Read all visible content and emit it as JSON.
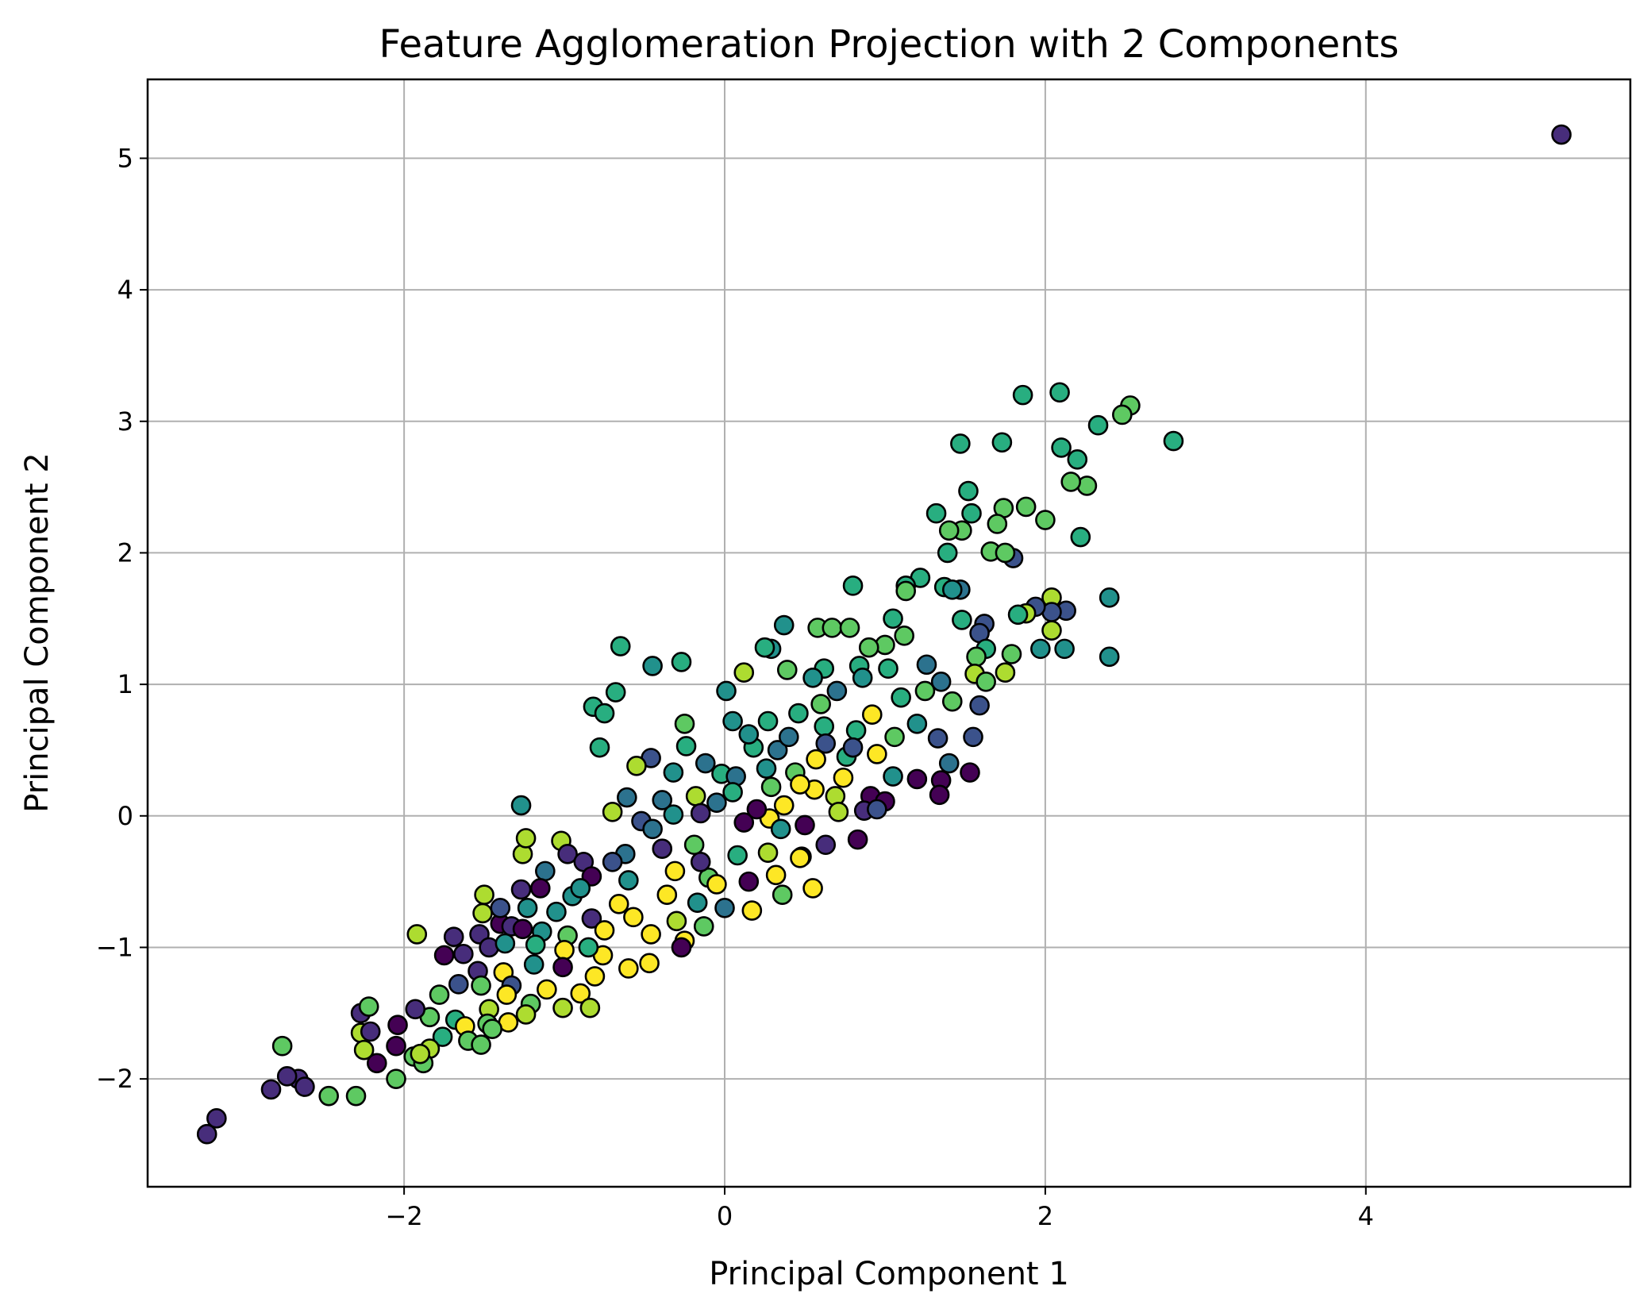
{
  "chart_data": {
    "type": "scatter",
    "title": "Feature Agglomeration Projection with 2 Components",
    "xlabel": "Principal Component 1",
    "ylabel": "Principal Component 2",
    "xlim": [
      -3.6,
      5.65
    ],
    "ylim": [
      -2.82,
      5.6
    ],
    "xticks": [
      -2,
      0,
      2,
      4
    ],
    "yticks": [
      -2,
      -1,
      0,
      1,
      2,
      3,
      4,
      5
    ],
    "xtick_labels": [
      "−2",
      "0",
      "2",
      "4"
    ],
    "ytick_labels": [
      "−2",
      "−1",
      "0",
      "1",
      "2",
      "3",
      "4",
      "5"
    ],
    "grid": true,
    "legend": "none",
    "colormap": "viridis",
    "marker_edge_color": "#000000",
    "palette": [
      "#440154",
      "#472d7b",
      "#3b528b",
      "#2c728e",
      "#21918c",
      "#28ae80",
      "#5ec962",
      "#addc30",
      "#fde725"
    ],
    "points": [
      [
        5.22,
        5.18,
        1
      ],
      [
        2.09,
        3.22,
        5
      ],
      [
        1.86,
        3.2,
        5
      ],
      [
        2.53,
        3.12,
        6
      ],
      [
        2.48,
        3.05,
        6
      ],
      [
        2.33,
        2.97,
        5
      ],
      [
        2.8,
        2.85,
        5
      ],
      [
        1.47,
        2.83,
        5
      ],
      [
        1.73,
        2.84,
        5
      ],
      [
        2.1,
        2.8,
        5
      ],
      [
        2.2,
        2.71,
        5
      ],
      [
        2.26,
        2.51,
        6
      ],
      [
        2.16,
        2.54,
        6
      ],
      [
        1.52,
        2.47,
        5
      ],
      [
        1.54,
        2.3,
        5
      ],
      [
        1.32,
        2.3,
        5
      ],
      [
        1.88,
        2.35,
        6
      ],
      [
        1.74,
        2.34,
        6
      ],
      [
        2.0,
        2.25,
        6
      ],
      [
        1.48,
        2.17,
        6
      ],
      [
        1.4,
        2.17,
        6
      ],
      [
        1.7,
        2.22,
        6
      ],
      [
        2.22,
        2.12,
        5
      ],
      [
        1.39,
        2.0,
        5
      ],
      [
        1.66,
        2.01,
        6
      ],
      [
        1.8,
        1.96,
        2
      ],
      [
        1.75,
        2.0,
        6
      ],
      [
        1.22,
        1.81,
        5
      ],
      [
        1.13,
        1.75,
        5
      ],
      [
        1.13,
        1.71,
        6
      ],
      [
        0.8,
        1.75,
        5
      ],
      [
        1.37,
        1.74,
        5
      ],
      [
        1.47,
        1.72,
        3
      ],
      [
        1.42,
        1.72,
        4
      ],
      [
        2.04,
        1.66,
        7
      ],
      [
        2.4,
        1.66,
        4
      ],
      [
        2.13,
        1.56,
        2
      ],
      [
        2.04,
        1.55,
        2
      ],
      [
        1.94,
        1.59,
        2
      ],
      [
        1.88,
        1.54,
        7
      ],
      [
        0.37,
        1.45,
        4
      ],
      [
        0.58,
        1.43,
        6
      ],
      [
        0.67,
        1.43,
        6
      ],
      [
        0.78,
        1.43,
        6
      ],
      [
        1.48,
        1.49,
        5
      ],
      [
        1.62,
        1.46,
        2
      ],
      [
        1.83,
        1.53,
        5
      ],
      [
        2.04,
        1.41,
        7
      ],
      [
        -0.65,
        1.29,
        5
      ],
      [
        0.29,
        1.27,
        4
      ],
      [
        0.25,
        1.28,
        5
      ],
      [
        1.59,
        1.39,
        2
      ],
      [
        1.0,
        1.3,
        6
      ],
      [
        1.12,
        1.37,
        6
      ],
      [
        -0.45,
        1.14,
        4
      ],
      [
        -0.27,
        1.17,
        5
      ],
      [
        0.12,
        1.09,
        7
      ],
      [
        2.12,
        1.27,
        4
      ],
      [
        2.4,
        1.21,
        4
      ],
      [
        1.97,
        1.27,
        4
      ],
      [
        1.63,
        1.27,
        5
      ],
      [
        1.75,
        1.09,
        7
      ],
      [
        1.57,
        1.21,
        6
      ],
      [
        1.79,
        1.23,
        6
      ],
      [
        1.56,
        1.08,
        7
      ],
      [
        1.02,
        1.12,
        5
      ],
      [
        0.84,
        1.14,
        5
      ],
      [
        -0.68,
        0.94,
        5
      ],
      [
        -0.82,
        0.83,
        5
      ],
      [
        -0.75,
        0.78,
        5
      ],
      [
        0.01,
        0.95,
        4
      ],
      [
        0.39,
        1.11,
        6
      ],
      [
        0.62,
        1.12,
        5
      ],
      [
        0.86,
        1.05,
        4
      ],
      [
        1.35,
        1.02,
        3
      ],
      [
        1.26,
        1.15,
        3
      ],
      [
        1.63,
        1.02,
        6
      ],
      [
        1.42,
        0.87,
        6
      ],
      [
        1.59,
        0.84,
        2
      ],
      [
        -0.78,
        0.52,
        5
      ],
      [
        -0.25,
        0.7,
        6
      ],
      [
        0.05,
        0.72,
        4
      ],
      [
        0.27,
        0.72,
        5
      ],
      [
        0.46,
        0.78,
        5
      ],
      [
        0.62,
        0.68,
        5
      ],
      [
        0.82,
        0.65,
        5
      ],
      [
        1.06,
        0.6,
        6
      ],
      [
        1.2,
        0.7,
        4
      ],
      [
        0.92,
        0.77,
        8
      ],
      [
        0.95,
        0.47,
        8
      ],
      [
        -0.46,
        0.44,
        2
      ],
      [
        -0.24,
        0.53,
        5
      ],
      [
        -0.12,
        0.4,
        3
      ],
      [
        0.18,
        0.52,
        5
      ],
      [
        0.33,
        0.5,
        3
      ],
      [
        0.57,
        0.43,
        8
      ],
      [
        0.63,
        0.55,
        2
      ],
      [
        0.76,
        0.45,
        5
      ],
      [
        1.33,
        0.59,
        2
      ],
      [
        1.55,
        0.6,
        2
      ],
      [
        1.4,
        0.4,
        3
      ],
      [
        -0.55,
        0.38,
        7
      ],
      [
        -0.32,
        0.33,
        4
      ],
      [
        -0.02,
        0.32,
        5
      ],
      [
        0.07,
        0.3,
        3
      ],
      [
        0.26,
        0.36,
        4
      ],
      [
        0.44,
        0.33,
        6
      ],
      [
        0.74,
        0.29,
        8
      ],
      [
        1.05,
        0.3,
        4
      ],
      [
        1.2,
        0.28,
        0
      ],
      [
        1.35,
        0.27,
        0
      ],
      [
        1.53,
        0.33,
        0
      ],
      [
        1.34,
        0.16,
        0
      ],
      [
        -1.27,
        0.08,
        4
      ],
      [
        -0.61,
        0.14,
        3
      ],
      [
        -0.39,
        0.12,
        3
      ],
      [
        -0.18,
        0.15,
        7
      ],
      [
        0.05,
        0.18,
        5
      ],
      [
        0.29,
        0.22,
        6
      ],
      [
        0.37,
        0.08,
        8
      ],
      [
        0.56,
        0.2,
        8
      ],
      [
        0.69,
        0.15,
        7
      ],
      [
        0.91,
        0.15,
        0
      ],
      [
        1.0,
        0.11,
        0
      ],
      [
        0.47,
        0.24,
        8
      ],
      [
        -0.7,
        0.03,
        7
      ],
      [
        -0.52,
        -0.04,
        2
      ],
      [
        -0.32,
        0.01,
        4
      ],
      [
        -0.15,
        0.02,
        1
      ],
      [
        0.12,
        -0.05,
        0
      ],
      [
        0.28,
        -0.02,
        8
      ],
      [
        0.5,
        -0.07,
        0
      ],
      [
        0.71,
        0.03,
        7
      ],
      [
        0.87,
        0.04,
        1
      ],
      [
        -1.02,
        -0.19,
        7
      ],
      [
        -0.98,
        -0.29,
        1
      ],
      [
        -1.26,
        -0.29,
        7
      ],
      [
        -1.24,
        -0.17,
        7
      ],
      [
        -0.88,
        -0.35,
        1
      ],
      [
        -0.62,
        -0.29,
        3
      ],
      [
        -0.39,
        -0.25,
        1
      ],
      [
        -0.19,
        -0.22,
        6
      ],
      [
        0.08,
        -0.3,
        5
      ],
      [
        0.27,
        -0.28,
        7
      ],
      [
        0.48,
        -0.31,
        2
      ],
      [
        0.63,
        -0.22,
        1
      ],
      [
        0.83,
        -0.18,
        0
      ],
      [
        -1.12,
        -0.42,
        3
      ],
      [
        -0.83,
        -0.46,
        0
      ],
      [
        -0.6,
        -0.49,
        4
      ],
      [
        -0.31,
        -0.42,
        8
      ],
      [
        -0.1,
        -0.47,
        6
      ],
      [
        0.15,
        -0.5,
        0
      ],
      [
        0.32,
        -0.45,
        8
      ],
      [
        0.47,
        -0.32,
        8
      ],
      [
        -1.5,
        -0.6,
        7
      ],
      [
        -1.27,
        -0.56,
        1
      ],
      [
        -1.15,
        -0.55,
        0
      ],
      [
        -0.95,
        -0.61,
        4
      ],
      [
        -0.66,
        -0.67,
        8
      ],
      [
        -0.36,
        -0.6,
        8
      ],
      [
        -0.17,
        -0.66,
        4
      ],
      [
        0.0,
        -0.7,
        3
      ],
      [
        0.17,
        -0.72,
        8
      ],
      [
        0.36,
        -0.6,
        6
      ],
      [
        -1.51,
        -0.74,
        7
      ],
      [
        -1.23,
        -0.7,
        4
      ],
      [
        -1.05,
        -0.73,
        4
      ],
      [
        -0.83,
        -0.78,
        1
      ],
      [
        -0.57,
        -0.77,
        8
      ],
      [
        -0.3,
        -0.8,
        7
      ],
      [
        -0.13,
        -0.84,
        6
      ],
      [
        -1.69,
        -0.92,
        1
      ],
      [
        -1.53,
        -0.9,
        1
      ],
      [
        -1.4,
        -0.82,
        0
      ],
      [
        -1.33,
        -0.84,
        1
      ],
      [
        -1.26,
        -0.86,
        0
      ],
      [
        -1.14,
        -0.88,
        4
      ],
      [
        -0.98,
        -0.91,
        6
      ],
      [
        -0.75,
        -0.87,
        8
      ],
      [
        -0.46,
        -0.9,
        8
      ],
      [
        -0.25,
        -0.95,
        8
      ],
      [
        -1.92,
        -0.9,
        7
      ],
      [
        -1.75,
        -1.06,
        0
      ],
      [
        -1.63,
        -1.05,
        1
      ],
      [
        -1.47,
        -1.0,
        1
      ],
      [
        -1.37,
        -0.97,
        4
      ],
      [
        -1.18,
        -0.98,
        5
      ],
      [
        -1.0,
        -1.02,
        8
      ],
      [
        -0.76,
        -1.06,
        8
      ],
      [
        -0.47,
        -1.12,
        8
      ],
      [
        -0.27,
        -1.0,
        0
      ],
      [
        -1.54,
        -1.18,
        1
      ],
      [
        -1.38,
        -1.19,
        8
      ],
      [
        -1.19,
        -1.13,
        4
      ],
      [
        -1.01,
        -1.15,
        0
      ],
      [
        -0.81,
        -1.22,
        8
      ],
      [
        -0.6,
        -1.16,
        8
      ],
      [
        -1.66,
        -1.28,
        2
      ],
      [
        -1.52,
        -1.29,
        6
      ],
      [
        -1.33,
        -1.29,
        2
      ],
      [
        -1.11,
        -1.32,
        8
      ],
      [
        -0.9,
        -1.35,
        8
      ],
      [
        -1.78,
        -1.36,
        6
      ],
      [
        -1.47,
        -1.47,
        7
      ],
      [
        -1.36,
        -1.36,
        8
      ],
      [
        -1.21,
        -1.43,
        6
      ],
      [
        -1.01,
        -1.46,
        7
      ],
      [
        -0.84,
        -1.46,
        7
      ],
      [
        -1.68,
        -1.55,
        5
      ],
      [
        -1.48,
        -1.58,
        6
      ],
      [
        -1.35,
        -1.57,
        8
      ],
      [
        -1.24,
        -1.51,
        7
      ],
      [
        -1.84,
        -1.53,
        6
      ],
      [
        -1.62,
        -1.6,
        8
      ],
      [
        -1.76,
        -1.68,
        5
      ],
      [
        -1.6,
        -1.71,
        6
      ],
      [
        -1.52,
        -1.74,
        6
      ],
      [
        -1.45,
        -1.62,
        6
      ],
      [
        -2.27,
        -1.5,
        1
      ],
      [
        -2.22,
        -1.45,
        6
      ],
      [
        -2.27,
        -1.65,
        7
      ],
      [
        -2.21,
        -1.64,
        1
      ],
      [
        -2.04,
        -1.59,
        0
      ],
      [
        -2.05,
        -1.75,
        0
      ],
      [
        -1.93,
        -1.47,
        1
      ],
      [
        -1.84,
        -1.77,
        7
      ],
      [
        -1.94,
        -1.83,
        6
      ],
      [
        -1.88,
        -1.88,
        6
      ],
      [
        -1.9,
        -1.81,
        7
      ],
      [
        -2.25,
        -1.78,
        7
      ],
      [
        -2.17,
        -1.88,
        0
      ],
      [
        -2.76,
        -1.75,
        6
      ],
      [
        -2.66,
        -2.0,
        1
      ],
      [
        -2.73,
        -1.98,
        1
      ],
      [
        -2.83,
        -2.08,
        1
      ],
      [
        -2.62,
        -2.06,
        1
      ],
      [
        -2.47,
        -2.13,
        6
      ],
      [
        -2.3,
        -2.13,
        6
      ],
      [
        -2.05,
        -2.0,
        6
      ],
      [
        -3.17,
        -2.3,
        1
      ],
      [
        -3.23,
        -2.42,
        1
      ],
      [
        0.9,
        1.28,
        6
      ],
      [
        1.05,
        1.5,
        5
      ],
      [
        0.55,
        1.05,
        4
      ],
      [
        0.7,
        0.95,
        3
      ],
      [
        0.15,
        0.62,
        4
      ],
      [
        0.4,
        0.6,
        3
      ],
      [
        0.8,
        0.52,
        2
      ],
      [
        1.1,
        0.9,
        5
      ],
      [
        -0.05,
        0.1,
        3
      ],
      [
        0.2,
        0.05,
        0
      ],
      [
        -0.45,
        -0.1,
        3
      ],
      [
        -0.7,
        -0.35,
        2
      ],
      [
        -0.05,
        -0.52,
        8
      ],
      [
        0.55,
        -0.55,
        8
      ],
      [
        -0.9,
        -0.55,
        4
      ],
      [
        -1.4,
        -0.7,
        2
      ],
      [
        -0.85,
        -1.0,
        5
      ],
      [
        -0.15,
        -0.35,
        1
      ],
      [
        0.35,
        -0.1,
        4
      ],
      [
        0.95,
        0.05,
        2
      ],
      [
        1.25,
        0.95,
        6
      ],
      [
        0.6,
        0.85,
        6
      ]
    ]
  }
}
